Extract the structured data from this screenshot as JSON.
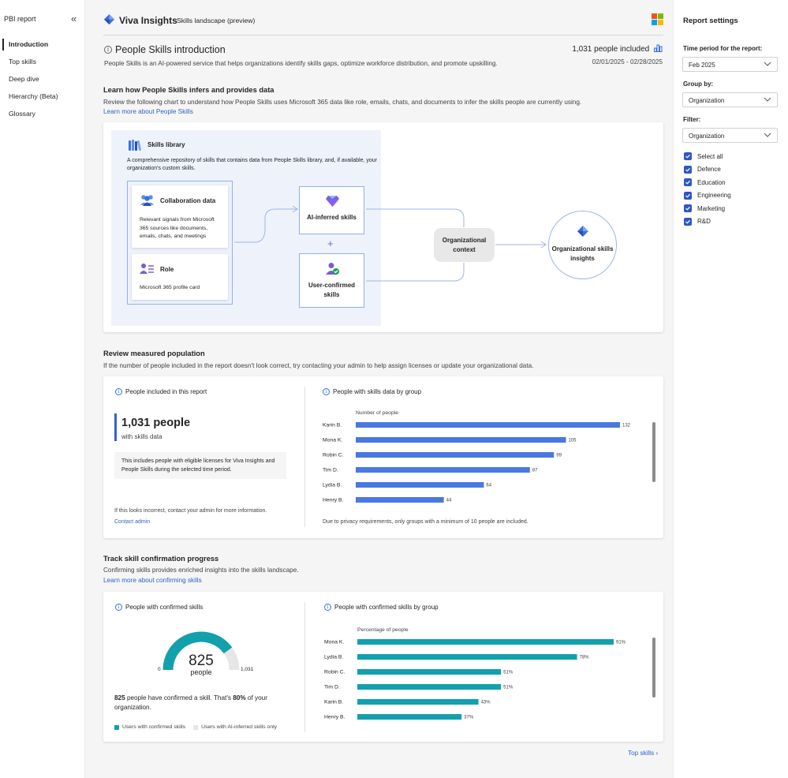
{
  "leftnav": {
    "title": "PBI report",
    "items": [
      {
        "label": "Introduction",
        "active": true
      },
      {
        "label": "Top skills",
        "active": false
      },
      {
        "label": "Deep dive",
        "active": false
      },
      {
        "label": "Hierarchy (Beta)",
        "active": false
      },
      {
        "label": "Glossary",
        "active": false
      }
    ]
  },
  "header": {
    "brand": "Viva Insights",
    "subtitle": "Skills landscape (preview)",
    "ms_colors": [
      "#f25022",
      "#7fba00",
      "#00a4ef",
      "#ffb900"
    ]
  },
  "intro": {
    "title": "People Skills introduction",
    "description": "People Skills is an AI-powered service that helps organizations identify skills gaps, optimize workforce distribution, and promote upskilling.",
    "people_included": "1,031 people included",
    "date_range": "02/01/2025 - 02/28/2025"
  },
  "learn": {
    "title": "Learn how People Skills infers and provides data",
    "description": "Review the following chart to understand how People Skills uses Microsoft 365 data like role, emails, chats, and documents to infer the skills people are currently using.",
    "link": "Learn more about People Skills"
  },
  "diagram": {
    "skills_library_title": "Skills library",
    "skills_library_desc": "A comprehensive repository of skills that contains data from People Skills library, and, if available, your organization's custom skills.",
    "collab_title": "Collaboration data",
    "collab_desc": "Relevant signals from Microsoft 365 sources like documents, emails, chats, and meetings",
    "role_title": "Role",
    "role_desc": "Microsoft 365 profile card",
    "ai_inferred": "AI-inferred skills",
    "user_confirmed": "User-confirmed skills",
    "org_context": "Organizational context",
    "org_insights": "Organizational skills insights",
    "plus": "+"
  },
  "population": {
    "title": "Review measured population",
    "description": "If the number of people included in the report doesn't look correct, try contacting your admin to help assign licenses or update your organizational data.",
    "left_title": "People included in this report",
    "big_stat": "1,031 people",
    "big_stat_sub": "with skills data",
    "note": "This includes people with eligible licenses for Viva Insights and People Skills during the selected time period.",
    "incorrect_text": "If this looks incorrect, contact your admin for more information.",
    "contact_link": "Contact admin",
    "right_title": "People with skills data by group",
    "privacy_note": "Due to privacy requirements, only groups with a minimum of 10 people are included."
  },
  "confirm": {
    "title": "Track skill confirmation progress",
    "description": "Confirming skills provides enriched insights into the skills landscape.",
    "link": "Learn more about confirming skills",
    "left_title": "People with confirmed skills",
    "gauge_value": "825",
    "gauge_unit": "people",
    "gauge_min": "0",
    "gauge_max": "1,031",
    "desc_strong1": "825",
    "desc_mid": " people have confirmed a skill. That's ",
    "desc_strong2": "80%",
    "desc_end": " of your organization.",
    "legend_confirmed": "Users with confirmed skills",
    "legend_inferred": "Users with AI-inferred skills only",
    "right_title": "People with confirmed skills by group"
  },
  "footer": {
    "next_link": "Top skills"
  },
  "settings": {
    "title": "Report settings",
    "time_label": "Time period for the report:",
    "time_value": "Feb 2025",
    "group_label": "Group by:",
    "group_value": "Organization",
    "filter_label": "Filter:",
    "filter_value": "Organization",
    "checks": [
      "Select all",
      "Defence",
      "Education",
      "Engineering",
      "Marketing",
      "R&D"
    ]
  },
  "chart_data": [
    {
      "type": "bar",
      "orientation": "horizontal",
      "xlabel": "Number of people",
      "categories": [
        "Karin B.",
        "Mona K.",
        "Robin C.",
        "Tim D.",
        "Lydia B.",
        "Henry B."
      ],
      "values": [
        132,
        105,
        99,
        87,
        64,
        44
      ],
      "color": "#4a78e3"
    },
    {
      "type": "bar",
      "orientation": "horizontal",
      "xlabel": "Percentage of people",
      "categories": [
        "Mona K.",
        "Lydia B.",
        "Robin C.",
        "Tim D.",
        "Karin B.",
        "Henry B."
      ],
      "values": [
        91,
        78,
        51,
        51,
        43,
        37
      ],
      "value_suffix": "%",
      "color": "#12a0ad"
    },
    {
      "type": "gauge",
      "value": 825,
      "min": 0,
      "max": 1031,
      "colors": {
        "filled": "#12a0ad",
        "remaining": "#e6e6e6"
      }
    }
  ]
}
